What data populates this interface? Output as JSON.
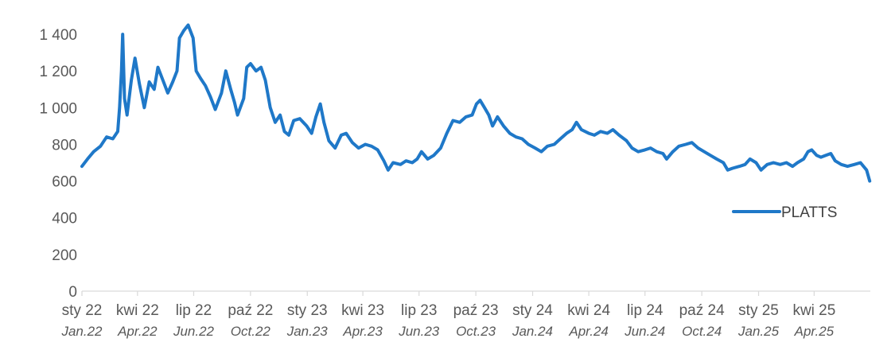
{
  "chart_data": {
    "type": "line",
    "title": "",
    "xlabel": "",
    "ylabel": "",
    "ylim": [
      0,
      1500
    ],
    "yticks": [
      0,
      200,
      400,
      600,
      800,
      1000,
      1200,
      1400
    ],
    "ytick_labels": [
      "0",
      "200",
      "400",
      "600",
      "800",
      "1 000",
      "1 200",
      "1 400"
    ],
    "xticks": [
      {
        "label": "sty 22",
        "label_en": "Jan.22"
      },
      {
        "label": "kwi 22",
        "label_en": "Apr.22"
      },
      {
        "label": "lip 22",
        "label_en": "Jun.22"
      },
      {
        "label": "paź 22",
        "label_en": "Oct.22"
      },
      {
        "label": "sty 23",
        "label_en": "Jan.23"
      },
      {
        "label": "kwi 23",
        "label_en": "Apr.23"
      },
      {
        "label": "lip 23",
        "label_en": "Jun.23"
      },
      {
        "label": "paź 23",
        "label_en": "Oct.23"
      },
      {
        "label": "sty 24",
        "label_en": "Jan.24"
      },
      {
        "label": "kwi 24",
        "label_en": "Apr.24"
      },
      {
        "label": "lip 24",
        "label_en": "Jun.24"
      },
      {
        "label": "paź 24",
        "label_en": "Oct.24"
      },
      {
        "label": "sty 25",
        "label_en": "Jan.25"
      },
      {
        "label": "kwi 25",
        "label_en": "Apr.25"
      }
    ],
    "grid": false,
    "legend_position": "right",
    "series": [
      {
        "name": "PLATTS",
        "color": "#1f78c8",
        "points": [
          [
            "2022-01-01",
            680
          ],
          [
            "2022-01-10",
            720
          ],
          [
            "2022-01-20",
            760
          ],
          [
            "2022-01-31",
            790
          ],
          [
            "2022-02-10",
            840
          ],
          [
            "2022-02-20",
            830
          ],
          [
            "2022-02-28",
            870
          ],
          [
            "2022-03-03",
            1000
          ],
          [
            "2022-03-06",
            1200
          ],
          [
            "2022-03-08",
            1400
          ],
          [
            "2022-03-11",
            1050
          ],
          [
            "2022-03-15",
            960
          ],
          [
            "2022-03-22",
            1150
          ],
          [
            "2022-03-28",
            1270
          ],
          [
            "2022-04-04",
            1130
          ],
          [
            "2022-04-12",
            1000
          ],
          [
            "2022-04-20",
            1140
          ],
          [
            "2022-04-28",
            1100
          ],
          [
            "2022-05-04",
            1220
          ],
          [
            "2022-05-12",
            1150
          ],
          [
            "2022-05-20",
            1080
          ],
          [
            "2022-05-28",
            1140
          ],
          [
            "2022-06-04",
            1200
          ],
          [
            "2022-06-08",
            1380
          ],
          [
            "2022-06-15",
            1420
          ],
          [
            "2022-06-22",
            1450
          ],
          [
            "2022-06-30",
            1380
          ],
          [
            "2022-07-05",
            1200
          ],
          [
            "2022-07-12",
            1160
          ],
          [
            "2022-07-20",
            1120
          ],
          [
            "2022-07-28",
            1060
          ],
          [
            "2022-08-05",
            990
          ],
          [
            "2022-08-15",
            1080
          ],
          [
            "2022-08-22",
            1200
          ],
          [
            "2022-08-30",
            1100
          ],
          [
            "2022-09-05",
            1030
          ],
          [
            "2022-09-10",
            960
          ],
          [
            "2022-09-20",
            1050
          ],
          [
            "2022-09-25",
            1220
          ],
          [
            "2022-10-01",
            1240
          ],
          [
            "2022-10-10",
            1200
          ],
          [
            "2022-10-18",
            1220
          ],
          [
            "2022-10-25",
            1150
          ],
          [
            "2022-11-02",
            1000
          ],
          [
            "2022-11-10",
            920
          ],
          [
            "2022-11-18",
            960
          ],
          [
            "2022-11-25",
            870
          ],
          [
            "2022-12-02",
            850
          ],
          [
            "2022-12-10",
            930
          ],
          [
            "2022-12-20",
            940
          ],
          [
            "2022-12-31",
            900
          ],
          [
            "2023-01-08",
            860
          ],
          [
            "2023-01-15",
            950
          ],
          [
            "2023-01-22",
            1020
          ],
          [
            "2023-01-28",
            920
          ],
          [
            "2023-02-05",
            820
          ],
          [
            "2023-02-15",
            780
          ],
          [
            "2023-02-25",
            850
          ],
          [
            "2023-03-05",
            860
          ],
          [
            "2023-03-15",
            810
          ],
          [
            "2023-03-25",
            780
          ],
          [
            "2023-04-05",
            800
          ],
          [
            "2023-04-15",
            790
          ],
          [
            "2023-04-25",
            770
          ],
          [
            "2023-05-05",
            710
          ],
          [
            "2023-05-12",
            660
          ],
          [
            "2023-05-20",
            700
          ],
          [
            "2023-06-01",
            690
          ],
          [
            "2023-06-10",
            710
          ],
          [
            "2023-06-20",
            700
          ],
          [
            "2023-06-28",
            720
          ],
          [
            "2023-07-05",
            760
          ],
          [
            "2023-07-15",
            720
          ],
          [
            "2023-07-25",
            740
          ],
          [
            "2023-08-05",
            780
          ],
          [
            "2023-08-15",
            860
          ],
          [
            "2023-08-25",
            930
          ],
          [
            "2023-09-05",
            920
          ],
          [
            "2023-09-15",
            950
          ],
          [
            "2023-09-25",
            960
          ],
          [
            "2023-10-02",
            1020
          ],
          [
            "2023-10-08",
            1040
          ],
          [
            "2023-10-15",
            1000
          ],
          [
            "2023-10-22",
            960
          ],
          [
            "2023-10-28",
            900
          ],
          [
            "2023-11-05",
            950
          ],
          [
            "2023-11-15",
            900
          ],
          [
            "2023-11-25",
            860
          ],
          [
            "2023-12-05",
            840
          ],
          [
            "2023-12-15",
            830
          ],
          [
            "2023-12-25",
            800
          ],
          [
            "2024-01-05",
            780
          ],
          [
            "2024-01-15",
            760
          ],
          [
            "2024-01-25",
            790
          ],
          [
            "2024-02-05",
            800
          ],
          [
            "2024-02-15",
            830
          ],
          [
            "2024-02-25",
            860
          ],
          [
            "2024-03-05",
            880
          ],
          [
            "2024-03-12",
            920
          ],
          [
            "2024-03-20",
            880
          ],
          [
            "2024-04-01",
            860
          ],
          [
            "2024-04-10",
            850
          ],
          [
            "2024-04-20",
            870
          ],
          [
            "2024-05-01",
            860
          ],
          [
            "2024-05-10",
            880
          ],
          [
            "2024-05-20",
            850
          ],
          [
            "2024-06-01",
            820
          ],
          [
            "2024-06-10",
            780
          ],
          [
            "2024-06-20",
            760
          ],
          [
            "2024-07-01",
            770
          ],
          [
            "2024-07-10",
            780
          ],
          [
            "2024-07-20",
            760
          ],
          [
            "2024-07-30",
            750
          ],
          [
            "2024-08-05",
            720
          ],
          [
            "2024-08-15",
            760
          ],
          [
            "2024-08-25",
            790
          ],
          [
            "2024-09-05",
            800
          ],
          [
            "2024-09-15",
            810
          ],
          [
            "2024-09-25",
            780
          ],
          [
            "2024-10-05",
            760
          ],
          [
            "2024-10-15",
            740
          ],
          [
            "2024-10-25",
            720
          ],
          [
            "2024-11-05",
            700
          ],
          [
            "2024-11-12",
            660
          ],
          [
            "2024-11-20",
            670
          ],
          [
            "2024-12-01",
            680
          ],
          [
            "2024-12-10",
            690
          ],
          [
            "2024-12-18",
            720
          ],
          [
            "2024-12-28",
            700
          ],
          [
            "2025-01-05",
            660
          ],
          [
            "2025-01-15",
            690
          ],
          [
            "2025-01-25",
            700
          ],
          [
            "2025-02-05",
            690
          ],
          [
            "2025-02-15",
            700
          ],
          [
            "2025-02-25",
            680
          ],
          [
            "2025-03-05",
            700
          ],
          [
            "2025-03-15",
            720
          ],
          [
            "2025-03-22",
            760
          ],
          [
            "2025-03-28",
            770
          ],
          [
            "2025-04-05",
            740
          ],
          [
            "2025-04-12",
            730
          ],
          [
            "2025-04-20",
            740
          ],
          [
            "2025-04-28",
            750
          ],
          [
            "2025-05-05",
            710
          ],
          [
            "2025-05-15",
            690
          ],
          [
            "2025-05-25",
            680
          ],
          [
            "2025-06-05",
            690
          ],
          [
            "2025-06-15",
            700
          ],
          [
            "2025-06-25",
            660
          ],
          [
            "2025-06-30",
            600
          ]
        ]
      }
    ]
  }
}
